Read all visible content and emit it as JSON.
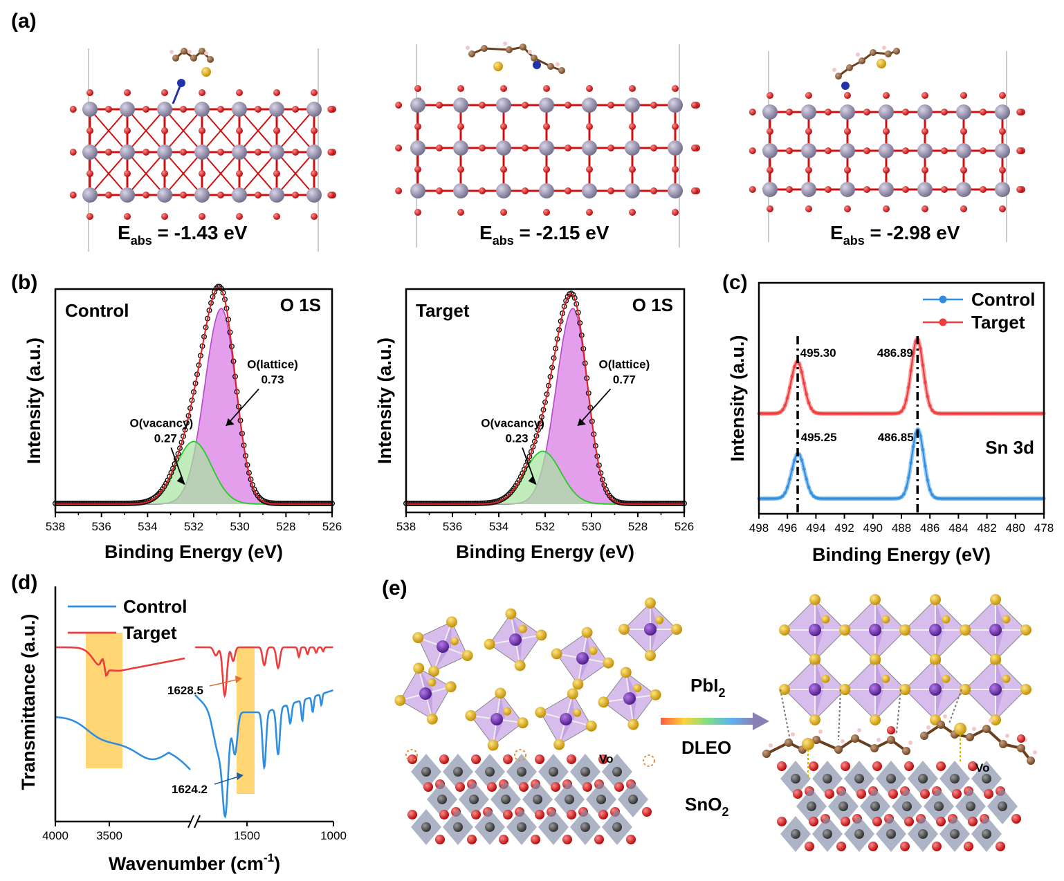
{
  "panels": {
    "a": {
      "label": "(a)",
      "structures": [
        {
          "eabs_main": "E",
          "eabs_sub": "abs",
          "eabs_value": " = -1.43 eV"
        },
        {
          "eabs_main": "E",
          "eabs_sub": "abs",
          "eabs_value": " = -2.15 eV"
        },
        {
          "eabs_main": "E",
          "eabs_sub": "abs",
          "eabs_value": " = -2.98 eV"
        }
      ]
    },
    "b": {
      "label": "(b)"
    },
    "c": {
      "label": "(c)"
    },
    "d": {
      "label": "(d)"
    },
    "e": {
      "label": "(e)",
      "reagent_1": "PbI",
      "reagent_1_sub": "2",
      "reagent_2": "DLEO",
      "substrate": "SnO",
      "substrate_sub": "2",
      "vacancy_left": "Vo",
      "vacancy_right": "Vo"
    }
  },
  "colors": {
    "control": "#2f8ee0",
    "target": "#ee3b3b",
    "lattice_fill": "#d97fe6",
    "lattice_line": "#b447c9",
    "vacancy_fill": "#a6e6a0",
    "vacancy_line": "#22cc22",
    "envelope": "#e02020",
    "raw": "#111111",
    "highlight": "#ffcf5a",
    "sn_atom": "#7f7a96",
    "o_atom": "#d01010",
    "pb_atom": "#6a2bb0",
    "i_atom": "#e8b000",
    "octa_fill": "#c9a7e6"
  },
  "chart_data": [
    {
      "type": "line",
      "panel": "b-left",
      "corner_left": "Control",
      "corner_right": "O 1S",
      "xlabel": "Binding Energy (eV)",
      "ylabel": "Intensity (a.u.)",
      "xlim": [
        538,
        526
      ],
      "x_ticks": [
        538,
        536,
        534,
        532,
        530,
        528,
        526
      ],
      "components": [
        {
          "name": "O(lattice)",
          "center": 530.8,
          "amplitude": 1.0,
          "area_fraction": "0.73"
        },
        {
          "name": "O(vacancy)",
          "center": 532.0,
          "amplitude": 0.32,
          "area_fraction": "0.27"
        }
      ],
      "annotations": [
        {
          "text": "O(lattice)",
          "value": "0.73"
        },
        {
          "text": "O(vacancy)",
          "value": "0.27"
        }
      ]
    },
    {
      "type": "line",
      "panel": "b-right",
      "corner_left": "Target",
      "corner_right": "O 1S",
      "xlabel": "Binding Energy (eV)",
      "ylabel": "Intensity (a.u.)",
      "xlim": [
        538,
        526
      ],
      "x_ticks": [
        538,
        536,
        534,
        532,
        530,
        528,
        526
      ],
      "components": [
        {
          "name": "O(lattice)",
          "center": 530.8,
          "amplitude": 1.0,
          "area_fraction": "0.77"
        },
        {
          "name": "O(vacancy)",
          "center": 532.1,
          "amplitude": 0.27,
          "area_fraction": "0.23"
        }
      ],
      "annotations": [
        {
          "text": "O(lattice)",
          "value": "0.77"
        },
        {
          "text": "O(vacancy)",
          "value": "0.23"
        }
      ]
    },
    {
      "type": "line",
      "panel": "c",
      "corner_right": "Sn 3d",
      "xlabel": "Binding Energy (eV)",
      "ylabel": "Intensity (a.u.)",
      "xlim": [
        498,
        478
      ],
      "x_ticks": [
        498,
        496,
        494,
        492,
        490,
        488,
        486,
        484,
        482,
        480,
        478
      ],
      "series": [
        {
          "name": "Control",
          "peaks": [
            495.25,
            486.85
          ],
          "peak_labels": [
            "495.25",
            "486.85"
          ]
        },
        {
          "name": "Target",
          "peaks": [
            495.3,
            486.89
          ],
          "peak_labels": [
            "495.30",
            "486.89"
          ]
        }
      ]
    },
    {
      "type": "line",
      "panel": "d",
      "xlabel": "Wavenumber (cm",
      "xlabel_sup": "-1",
      "xlabel_end": ")",
      "ylabel": "Transmittance (a.u.)",
      "x_ticks": [
        4000,
        3500,
        1500,
        1000
      ],
      "x_break": true,
      "series": [
        {
          "name": "Control",
          "marked_peak": "1624.2"
        },
        {
          "name": "Target",
          "marked_peak": "1628.5"
        }
      ]
    }
  ]
}
